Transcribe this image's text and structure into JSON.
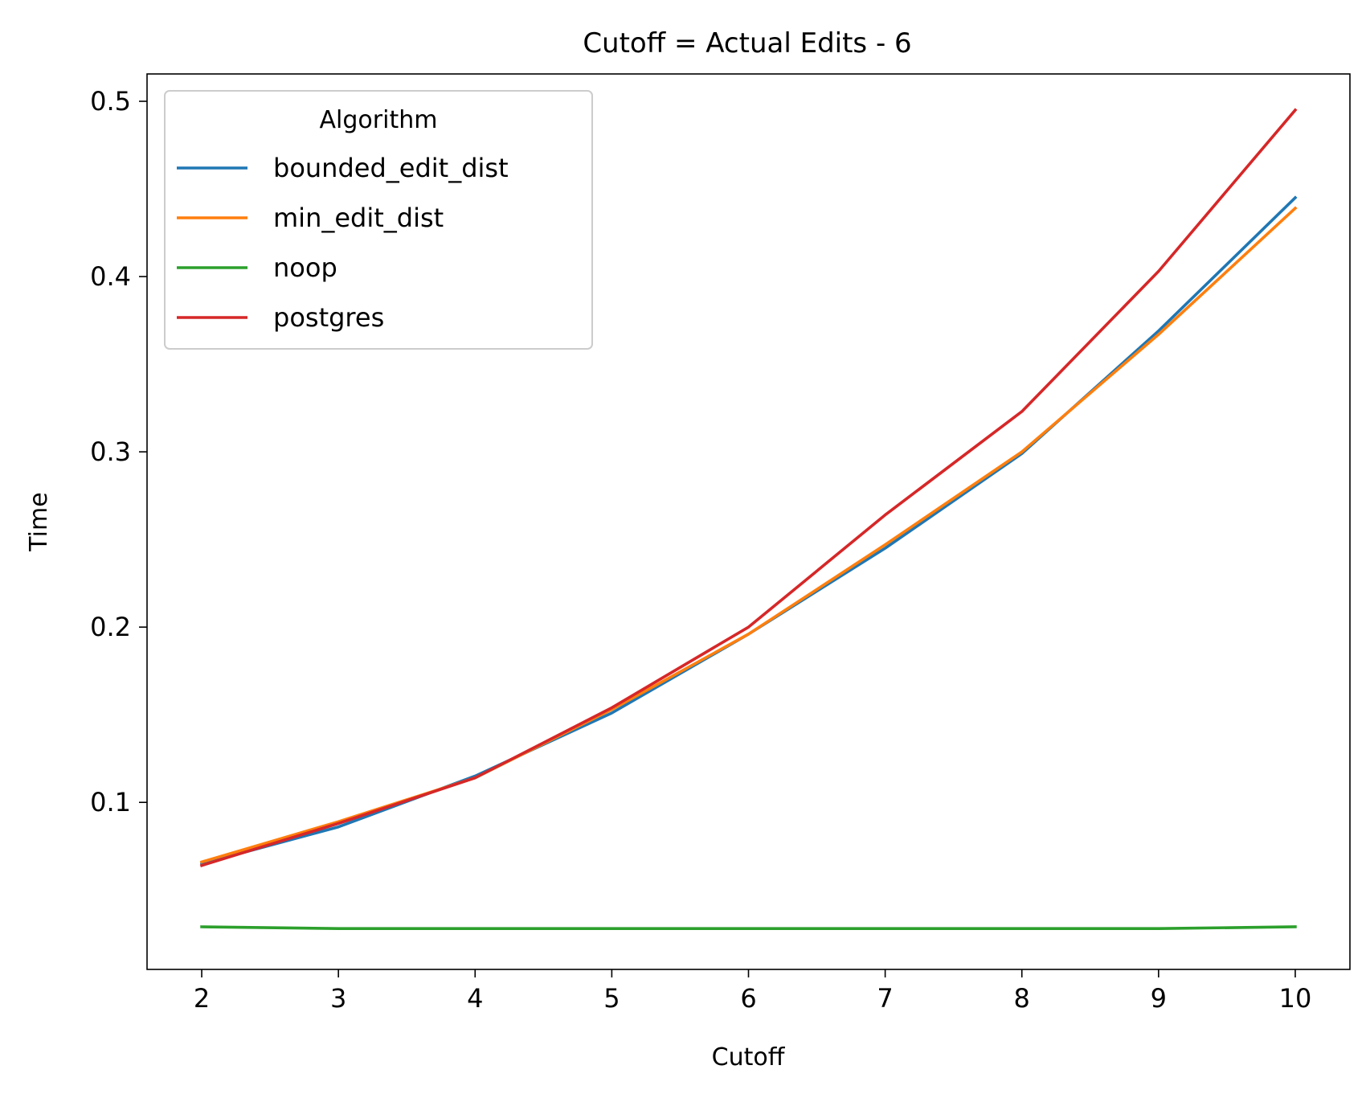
{
  "chart_data": {
    "type": "line",
    "title": "Cutoff = Actual Edits - 6",
    "xlabel": "Cutoff",
    "ylabel": "Time",
    "x": [
      2,
      3,
      4,
      5,
      6,
      7,
      8,
      9,
      10
    ],
    "xlim": [
      1.6,
      10.4
    ],
    "ylim": [
      0.0047,
      0.5156
    ],
    "x_ticks": [
      "2",
      "3",
      "4",
      "5",
      "6",
      "7",
      "8",
      "9",
      "10"
    ],
    "y_ticks": [
      "0.1",
      "0.2",
      "0.3",
      "0.4",
      "0.5"
    ],
    "grid": false,
    "legend": {
      "title": "Algorithm",
      "position": "top-left"
    },
    "series": [
      {
        "name": "bounded_edit_dist",
        "color": "#1f77b4",
        "values": [
          0.065,
          0.086,
          0.115,
          0.151,
          0.196,
          0.245,
          0.299,
          0.369,
          0.445
        ]
      },
      {
        "name": "min_edit_dist",
        "color": "#ff7f0e",
        "values": [
          0.066,
          0.089,
          0.114,
          0.153,
          0.196,
          0.247,
          0.3,
          0.367,
          0.439
        ]
      },
      {
        "name": "noop",
        "color": "#2ca02c",
        "values": [
          0.029,
          0.028,
          0.028,
          0.028,
          0.028,
          0.028,
          0.028,
          0.028,
          0.029
        ]
      },
      {
        "name": "postgres",
        "color": "#d62728",
        "values": [
          0.064,
          0.088,
          0.114,
          0.154,
          0.2,
          0.264,
          0.323,
          0.403,
          0.495
        ]
      }
    ]
  }
}
